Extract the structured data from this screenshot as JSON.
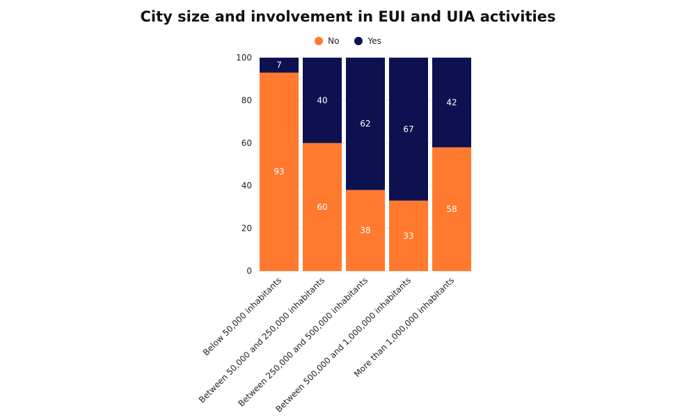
{
  "chart_data": {
    "type": "bar",
    "stacked": true,
    "title": "City size and involvement in EUI and UIA activities",
    "xlabel": "",
    "ylabel": "",
    "ylim": [
      0,
      100
    ],
    "yticks": [
      0,
      20,
      40,
      60,
      80,
      100
    ],
    "grid": true,
    "legend_position": "top-center",
    "categories": [
      "Below 50,000 inhabitants",
      "Between 50,000 and 250,000 inhabitants",
      "Between 250,000 and 500,000 inhabitants",
      "Between 500,000 and 1,000,000 inhabitants",
      "More than 1,000,000 inhabitants"
    ],
    "series": [
      {
        "name": "No",
        "color": "#ff7a2f",
        "values": [
          93,
          60,
          38,
          33,
          58
        ]
      },
      {
        "name": "Yes",
        "color": "#0d1150",
        "values": [
          7,
          40,
          62,
          67,
          42
        ]
      }
    ]
  }
}
